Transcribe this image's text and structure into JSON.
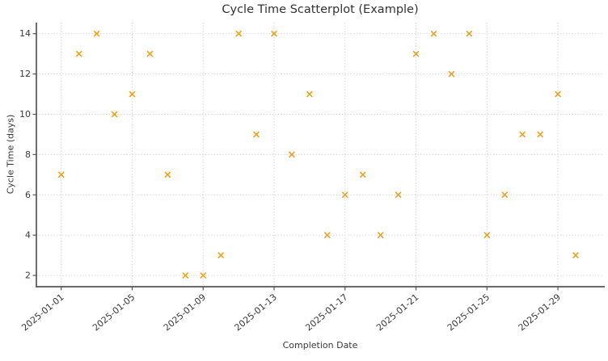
{
  "chart_data": {
    "type": "scatter",
    "title": "Cycle Time Scatterplot (Example)",
    "xlabel": "Completion Date",
    "ylabel": "Cycle Time (days)",
    "marker": "x",
    "marker_color": "#eba21e",
    "grid": true,
    "legend": "none",
    "x_tick_labels": [
      "2025-01-01",
      "2025-01-05",
      "2025-01-09",
      "2025-01-13",
      "2025-01-17",
      "2025-01-21",
      "2025-01-25",
      "2025-01-29"
    ],
    "y_tick_labels": [
      2,
      4,
      6,
      8,
      10,
      12,
      14
    ],
    "xlim_days": [
      -0.4,
      31.55
    ],
    "ylim": [
      1.44,
      14.55
    ],
    "points": [
      {
        "date": "2025-01-01",
        "value": 7
      },
      {
        "date": "2025-01-02",
        "value": 13
      },
      {
        "date": "2025-01-03",
        "value": 14
      },
      {
        "date": "2025-01-04",
        "value": 10
      },
      {
        "date": "2025-01-05",
        "value": 11
      },
      {
        "date": "2025-01-06",
        "value": 13
      },
      {
        "date": "2025-01-07",
        "value": 7
      },
      {
        "date": "2025-01-08",
        "value": 2
      },
      {
        "date": "2025-01-09",
        "value": 2
      },
      {
        "date": "2025-01-10",
        "value": 3
      },
      {
        "date": "2025-01-11",
        "value": 14
      },
      {
        "date": "2025-01-12",
        "value": 9
      },
      {
        "date": "2025-01-13",
        "value": 14
      },
      {
        "date": "2025-01-14",
        "value": 8
      },
      {
        "date": "2025-01-15",
        "value": 11
      },
      {
        "date": "2025-01-16",
        "value": 4
      },
      {
        "date": "2025-01-17",
        "value": 6
      },
      {
        "date": "2025-01-18",
        "value": 7
      },
      {
        "date": "2025-01-19",
        "value": 4
      },
      {
        "date": "2025-01-20",
        "value": 6
      },
      {
        "date": "2025-01-21",
        "value": 13
      },
      {
        "date": "2025-01-22",
        "value": 14
      },
      {
        "date": "2025-01-23",
        "value": 12
      },
      {
        "date": "2025-01-24",
        "value": 14
      },
      {
        "date": "2025-01-25",
        "value": 4
      },
      {
        "date": "2025-01-26",
        "value": 6
      },
      {
        "date": "2025-01-27",
        "value": 9
      },
      {
        "date": "2025-01-28",
        "value": 9
      },
      {
        "date": "2025-01-29",
        "value": 11
      },
      {
        "date": "2025-01-30",
        "value": 3
      }
    ]
  }
}
